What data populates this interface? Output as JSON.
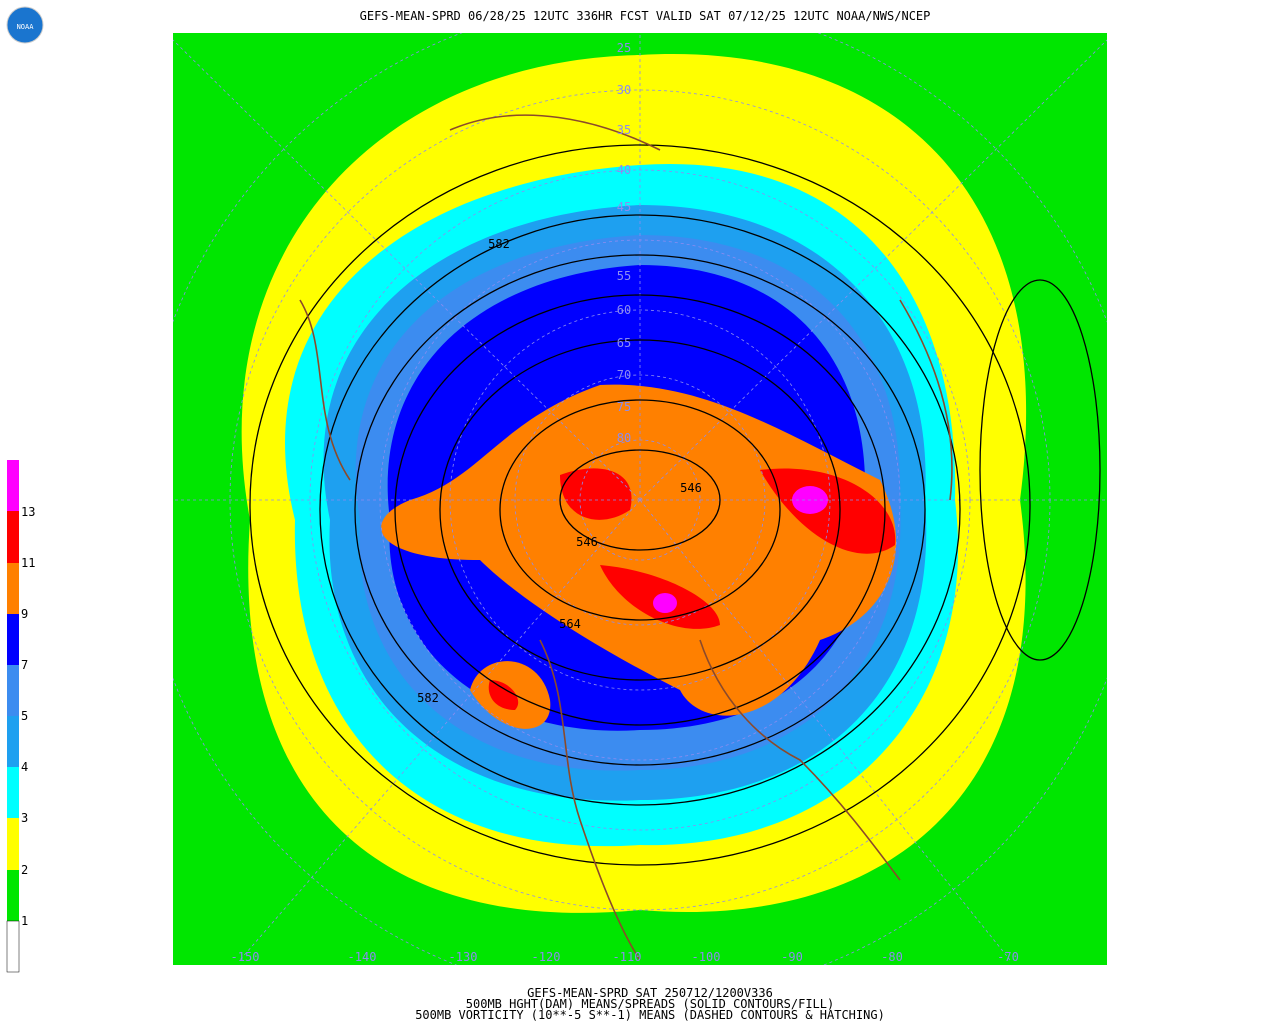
{
  "header": {
    "title": "GEFS-MEAN-SPRD 06/28/25 12UTC 336HR FCST VALID SAT 07/12/25 12UTC NOAA/NWS/NCEP",
    "logo": "NOAA"
  },
  "colorbar": {
    "labels": [
      13,
      11,
      9,
      7,
      5,
      4,
      3,
      2,
      1
    ]
  },
  "map": {
    "latitude_labels": [
      25,
      30,
      35,
      40,
      45,
      55,
      60,
      65,
      70,
      75,
      80
    ],
    "longitude_labels": [
      -150,
      -140,
      -130,
      -120,
      -110,
      -100,
      -90,
      -80,
      -70
    ],
    "contour_labels": [
      582,
      582,
      564,
      546,
      546
    ]
  },
  "footer": {
    "lines": [
      "GEFS-MEAN-SPRD SAT 250712/1200V336",
      "500MB HGHT(DAM) MEANS/SPREADS (SOLID CONTOURS/FILL)",
      "500MB VORTICITY (10**-5 S**-1) MEANS (DASHED CONTOURS & HATCHING)"
    ]
  }
}
